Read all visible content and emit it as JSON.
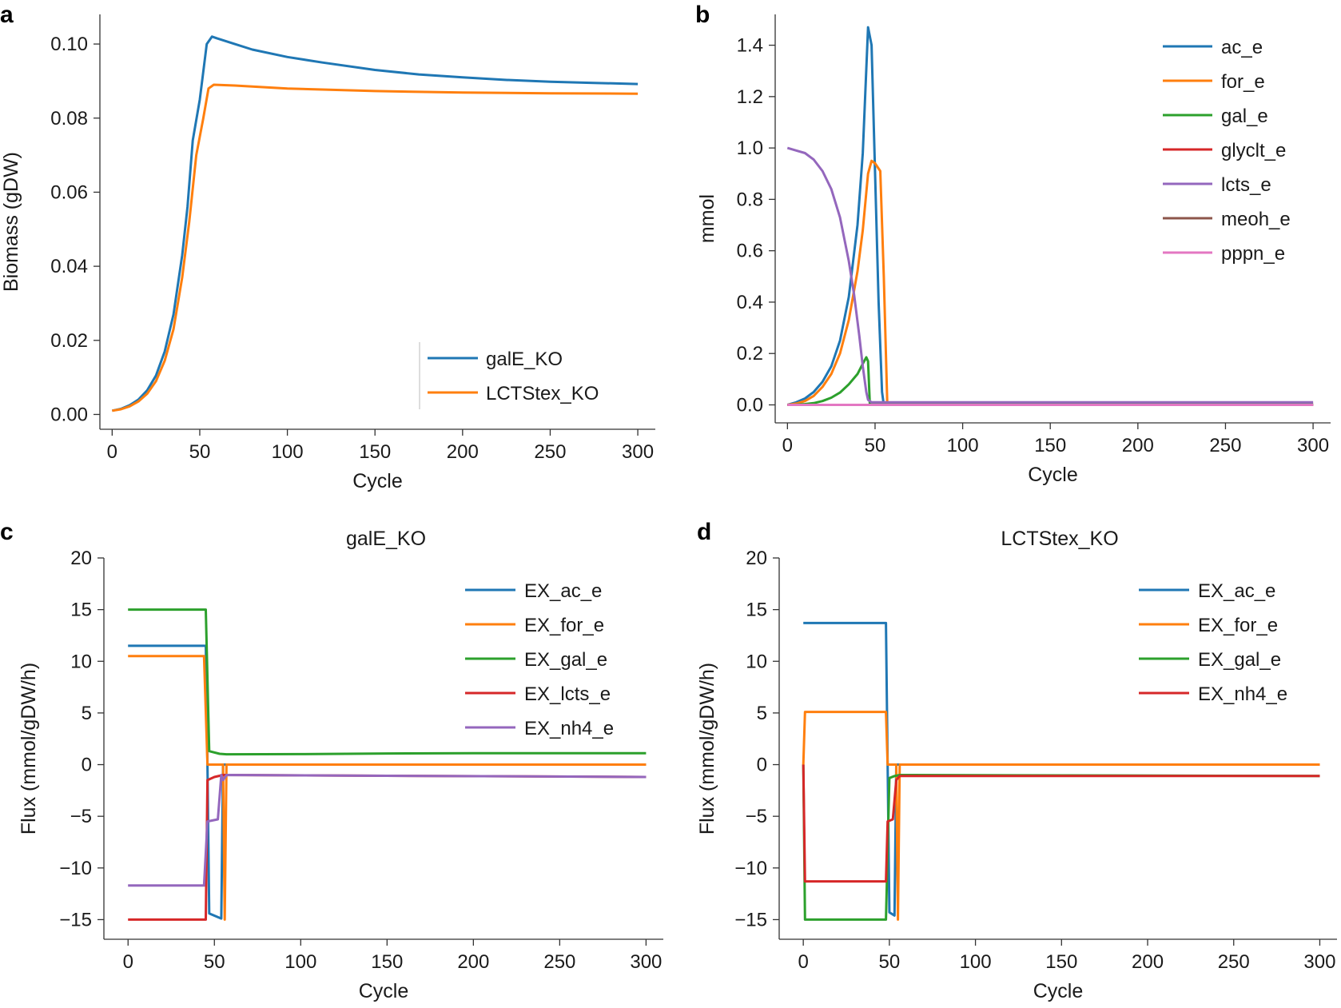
{
  "chart_data": [
    {
      "id": "a",
      "letter": "a",
      "type": "line",
      "title": "",
      "xlabel": "Cycle",
      "ylabel": "Biomass (gDW)",
      "xlim": [
        -7,
        310
      ],
      "ylim": [
        -0.004,
        0.108
      ],
      "xticks": [
        0,
        50,
        100,
        150,
        200,
        250,
        300
      ],
      "yticks": [
        0.0,
        0.02,
        0.04,
        0.06,
        0.08,
        0.1
      ],
      "ytick_labels": [
        "0.00",
        "0.02",
        "0.04",
        "0.06",
        "0.08",
        "0.10"
      ],
      "legend_position": "lower-right",
      "series": [
        {
          "name": "galE_KO",
          "color": "#1f77b4",
          "x": [
            0,
            5,
            10,
            15,
            20,
            25,
            30,
            35,
            40,
            43,
            46,
            50,
            54,
            57,
            60,
            70,
            80,
            100,
            120,
            150,
            175,
            200,
            225,
            250,
            275,
            300
          ],
          "y": [
            0.001,
            0.0015,
            0.0025,
            0.004,
            0.0065,
            0.0105,
            0.017,
            0.027,
            0.043,
            0.056,
            0.074,
            0.085,
            0.1,
            0.102,
            0.1015,
            0.1,
            0.0985,
            0.0965,
            0.095,
            0.093,
            0.0918,
            0.091,
            0.0903,
            0.0898,
            0.0895,
            0.0892
          ]
        },
        {
          "name": "LCTStex_KO",
          "color": "#ff7f0e",
          "x": [
            0,
            5,
            10,
            15,
            20,
            25,
            30,
            35,
            40,
            44,
            48,
            52,
            55,
            58,
            70,
            100,
            150,
            200,
            250,
            300
          ],
          "y": [
            0.001,
            0.0014,
            0.0022,
            0.0035,
            0.0056,
            0.009,
            0.0145,
            0.023,
            0.037,
            0.052,
            0.07,
            0.08,
            0.088,
            0.089,
            0.0888,
            0.088,
            0.0873,
            0.0869,
            0.0867,
            0.0866
          ]
        }
      ]
    },
    {
      "id": "b",
      "letter": "b",
      "type": "line",
      "title": "",
      "xlabel": "Cycle",
      "ylabel": "mmol",
      "xlim": [
        -7,
        310
      ],
      "ylim": [
        -0.07,
        1.52
      ],
      "xticks": [
        0,
        50,
        100,
        150,
        200,
        250,
        300
      ],
      "yticks": [
        0.0,
        0.2,
        0.4,
        0.6,
        0.8,
        1.0,
        1.2,
        1.4
      ],
      "ytick_labels": [
        "0.0",
        "0.2",
        "0.4",
        "0.6",
        "0.8",
        "1.0",
        "1.2",
        "1.4"
      ],
      "legend_position": "top-right",
      "series": [
        {
          "name": "ac_e",
          "color": "#1f77b4",
          "x": [
            0,
            5,
            10,
            15,
            20,
            25,
            30,
            35,
            40,
            43,
            46,
            48,
            50,
            52,
            54,
            55,
            300
          ],
          "y": [
            0.0,
            0.01,
            0.025,
            0.05,
            0.09,
            0.15,
            0.25,
            0.42,
            0.7,
            0.98,
            1.47,
            1.4,
            0.9,
            0.4,
            0.05,
            0.0,
            0.0
          ]
        },
        {
          "name": "for_e",
          "color": "#ff7f0e",
          "x": [
            0,
            5,
            10,
            15,
            20,
            25,
            30,
            35,
            40,
            43,
            46,
            48,
            50,
            53,
            55,
            57,
            300
          ],
          "y": [
            0.0,
            0.005,
            0.015,
            0.035,
            0.07,
            0.12,
            0.2,
            0.33,
            0.52,
            0.68,
            0.9,
            0.95,
            0.94,
            0.91,
            0.5,
            0.0,
            0.0
          ]
        },
        {
          "name": "gal_e",
          "color": "#2ca02c",
          "x": [
            0,
            5,
            10,
            15,
            20,
            25,
            30,
            35,
            40,
            43,
            45,
            46,
            47,
            300
          ],
          "y": [
            0.0,
            0.001,
            0.003,
            0.007,
            0.015,
            0.028,
            0.048,
            0.08,
            0.12,
            0.16,
            0.185,
            0.17,
            0.005,
            0.005
          ]
        },
        {
          "name": "glyclt_e",
          "color": "#d62728",
          "x": [
            0,
            300
          ],
          "y": [
            0.0,
            0.0
          ]
        },
        {
          "name": "lcts_e",
          "color": "#9467bd",
          "x": [
            0,
            5,
            10,
            15,
            20,
            25,
            30,
            35,
            38,
            41,
            43,
            45,
            46,
            48,
            60,
            300
          ],
          "y": [
            1.0,
            0.99,
            0.98,
            0.955,
            0.91,
            0.84,
            0.73,
            0.56,
            0.43,
            0.27,
            0.15,
            0.05,
            0.02,
            0.01,
            0.01,
            0.01
          ]
        },
        {
          "name": "meoh_e",
          "color": "#8c564b",
          "x": [
            0,
            300
          ],
          "y": [
            0.0,
            0.0
          ]
        },
        {
          "name": "pppn_e",
          "color": "#e377c2",
          "x": [
            0,
            300
          ],
          "y": [
            0.0,
            0.0
          ]
        }
      ]
    },
    {
      "id": "c",
      "letter": "c",
      "type": "line",
      "title": "galE_KO",
      "xlabel": "Cycle",
      "ylabel": "Flux (mmol/gDW/h)",
      "xlim": [
        -14,
        310
      ],
      "ylim": [
        -16.9,
        20
      ],
      "xticks": [
        0,
        50,
        100,
        150,
        200,
        250,
        300
      ],
      "yticks": [
        -15,
        -10,
        -5,
        0,
        5,
        10,
        15,
        20
      ],
      "ytick_labels": [
        "−15",
        "−10",
        "−5",
        "0",
        "5",
        "10",
        "15",
        "20"
      ],
      "legend_position": "top-right",
      "series": [
        {
          "name": "EX_ac_e",
          "color": "#1f77b4",
          "x": [
            0,
            45,
            46,
            47,
            54,
            55,
            300
          ],
          "y": [
            11.5,
            11.5,
            0.0,
            -14.4,
            -14.9,
            0.0,
            0.0
          ]
        },
        {
          "name": "EX_for_e",
          "color": "#ff7f0e",
          "x": [
            0,
            44,
            46,
            55,
            56,
            57,
            300
          ],
          "y": [
            10.5,
            10.5,
            0.0,
            0.0,
            -15.0,
            0.0,
            0.0
          ]
        },
        {
          "name": "EX_gal_e",
          "color": "#2ca02c",
          "x": [
            0,
            45,
            47,
            53,
            57,
            100,
            150,
            200,
            300
          ],
          "y": [
            15.0,
            15.0,
            1.3,
            1.05,
            1.0,
            1.02,
            1.08,
            1.1,
            1.1
          ]
        },
        {
          "name": "EX_lcts_e",
          "color": "#d62728",
          "x": [
            0,
            45,
            46,
            50,
            55,
            57,
            300
          ],
          "y": [
            -15.0,
            -15.0,
            -1.5,
            -1.2,
            -1.0,
            -1.0,
            -1.2
          ]
        },
        {
          "name": "EX_nh4_e",
          "color": "#9467bd",
          "x": [
            0,
            44,
            46,
            52,
            54,
            55,
            57,
            300
          ],
          "y": [
            -11.7,
            -11.7,
            -5.5,
            -5.3,
            -1.0,
            -1.5,
            -1.0,
            -1.2
          ]
        }
      ]
    },
    {
      "id": "d",
      "letter": "d",
      "type": "line",
      "title": "LCTStex_KO",
      "xlabel": "Cycle",
      "ylabel": "Flux (mmol/gDW/h)",
      "xlim": [
        -14,
        310
      ],
      "ylim": [
        -16.9,
        20
      ],
      "xticks": [
        0,
        50,
        100,
        150,
        200,
        250,
        300
      ],
      "yticks": [
        -15,
        -10,
        -5,
        0,
        5,
        10,
        15,
        20
      ],
      "ytick_labels": [
        "−15",
        "−10",
        "−5",
        "0",
        "5",
        "10",
        "15",
        "20"
      ],
      "legend_position": "top-right",
      "series": [
        {
          "name": "EX_ac_e",
          "color": "#1f77b4",
          "x": [
            0,
            1,
            48,
            49,
            50,
            53,
            54,
            55,
            300
          ],
          "y": [
            13.7,
            13.7,
            13.7,
            0.0,
            -14.3,
            -14.6,
            0.0,
            0.0,
            0.0
          ]
        },
        {
          "name": "EX_for_e",
          "color": "#ff7f0e",
          "x": [
            0,
            1,
            48,
            49,
            54,
            55,
            56,
            300
          ],
          "y": [
            0.0,
            5.1,
            5.1,
            0.0,
            0.0,
            -15.0,
            0.0,
            0.0
          ]
        },
        {
          "name": "EX_gal_e",
          "color": "#2ca02c",
          "x": [
            0,
            1,
            48,
            50,
            53,
            56,
            300
          ],
          "y": [
            0.0,
            -15.0,
            -15.0,
            -1.3,
            -1.1,
            -1.0,
            -1.1
          ]
        },
        {
          "name": "EX_nh4_e",
          "color": "#d62728",
          "x": [
            0,
            1,
            48,
            49,
            52,
            54,
            56,
            300
          ],
          "y": [
            0.0,
            -11.3,
            -11.3,
            -5.5,
            -5.3,
            -1.5,
            -1.1,
            -1.1
          ]
        }
      ]
    }
  ]
}
